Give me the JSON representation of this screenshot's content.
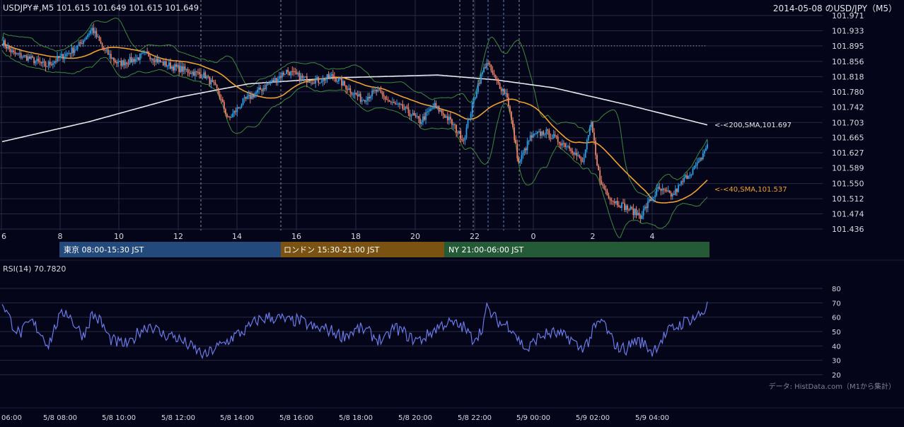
{
  "header": {
    "symbol_info": "USDJPY#,M5 101.615 101.649 101.615 101.649",
    "date_title": "2014-05-08 のUSD/JPY（M5）"
  },
  "colors": {
    "background": "#050519",
    "grid": "#262a44",
    "up_candle": "#2aa0e8",
    "down_candle": "#e8826a",
    "sma40": "#f0a030",
    "sma200": "#e8e8ee",
    "bollinger": "#3a8a3a",
    "rsi": "#6a7ae8",
    "tokyo": "#234a7a",
    "london": "#7a5212",
    "ny": "#245a36"
  },
  "chart_data": [
    {
      "type": "candlestick",
      "y_ticks": [
        "101.971",
        "101.933",
        "101.895",
        "101.856",
        "101.818",
        "101.780",
        "101.742",
        "101.703",
        "101.665",
        "101.627",
        "101.589",
        "101.550",
        "101.512",
        "101.474",
        "101.436"
      ],
      "ylim": [
        101.436,
        101.971
      ],
      "x_hour_ticks": [
        "6",
        "8",
        "10",
        "12",
        "14",
        "16",
        "18",
        "20",
        "22",
        "0",
        "2",
        "4"
      ],
      "indicators": {
        "sma200": {
          "label": "<-<200,SMA,101.697",
          "last": 101.697
        },
        "sma40": {
          "label": "<-<40,SMA,101.537",
          "last": 101.537
        },
        "bollinger": "bands"
      },
      "horizontal_level": 101.895,
      "series_anchor_closes": [
        [
          0,
          101.905
        ],
        [
          8,
          101.875
        ],
        [
          18,
          101.865
        ],
        [
          30,
          101.845
        ],
        [
          42,
          101.87
        ],
        [
          52,
          101.892
        ],
        [
          62,
          101.938
        ],
        [
          70,
          101.885
        ],
        [
          80,
          101.85
        ],
        [
          90,
          101.86
        ],
        [
          100,
          101.875
        ],
        [
          110,
          101.852
        ],
        [
          120,
          101.84
        ],
        [
          130,
          101.83
        ],
        [
          140,
          101.82
        ],
        [
          148,
          101.785
        ],
        [
          156,
          101.71
        ],
        [
          166,
          101.755
        ],
        [
          176,
          101.78
        ],
        [
          186,
          101.805
        ],
        [
          196,
          101.832
        ],
        [
          208,
          101.812
        ],
        [
          218,
          101.808
        ],
        [
          228,
          101.82
        ],
        [
          238,
          101.79
        ],
        [
          248,
          101.76
        ],
        [
          258,
          101.782
        ],
        [
          268,
          101.752
        ],
        [
          278,
          101.735
        ],
        [
          288,
          101.705
        ],
        [
          298,
          101.745
        ],
        [
          308,
          101.71
        ],
        [
          318,
          101.66
        ],
        [
          328,
          101.8
        ],
        [
          334,
          101.855
        ],
        [
          340,
          101.81
        ],
        [
          348,
          101.77
        ],
        [
          356,
          101.6
        ],
        [
          364,
          101.665
        ],
        [
          374,
          101.68
        ],
        [
          382,
          101.66
        ],
        [
          392,
          101.64
        ],
        [
          400,
          101.6
        ],
        [
          406,
          101.7
        ],
        [
          412,
          101.555
        ],
        [
          420,
          101.51
        ],
        [
          430,
          101.49
        ],
        [
          440,
          101.47
        ],
        [
          446,
          101.505
        ],
        [
          452,
          101.535
        ],
        [
          462,
          101.52
        ],
        [
          472,
          101.57
        ],
        [
          480,
          101.6
        ],
        [
          486,
          101.649
        ]
      ]
    },
    {
      "type": "line",
      "name": "RSI(14)",
      "label": "RSI(14) 70.7820",
      "last": 70.782,
      "ylim": [
        20,
        80
      ],
      "y_ticks": [
        "80",
        "70",
        "60",
        "50",
        "40",
        "30",
        "20"
      ],
      "anchor_values": [
        [
          0,
          71
        ],
        [
          6,
          57
        ],
        [
          12,
          48
        ],
        [
          20,
          57
        ],
        [
          26,
          50
        ],
        [
          32,
          41
        ],
        [
          38,
          57
        ],
        [
          44,
          65
        ],
        [
          50,
          55
        ],
        [
          56,
          47
        ],
        [
          62,
          62
        ],
        [
          68,
          57
        ],
        [
          74,
          45
        ],
        [
          80,
          42
        ],
        [
          88,
          41
        ],
        [
          94,
          50
        ],
        [
          102,
          55
        ],
        [
          110,
          48
        ],
        [
          118,
          47
        ],
        [
          126,
          42
        ],
        [
          134,
          37
        ],
        [
          140,
          33
        ],
        [
          146,
          38
        ],
        [
          152,
          41
        ],
        [
          160,
          47
        ],
        [
          168,
          51
        ],
        [
          176,
          58
        ],
        [
          184,
          60
        ],
        [
          192,
          59
        ],
        [
          198,
          57
        ],
        [
          204,
          58
        ],
        [
          210,
          55
        ],
        [
          216,
          52
        ],
        [
          222,
          52
        ],
        [
          228,
          50
        ],
        [
          234,
          47
        ],
        [
          240,
          49
        ],
        [
          246,
          52
        ],
        [
          252,
          50
        ],
        [
          258,
          45
        ],
        [
          264,
          44
        ],
        [
          270,
          53
        ],
        [
          276,
          50
        ],
        [
          282,
          45
        ],
        [
          288,
          44
        ],
        [
          294,
          48
        ],
        [
          300,
          53
        ],
        [
          306,
          56
        ],
        [
          312,
          55
        ],
        [
          318,
          53
        ],
        [
          324,
          45
        ],
        [
          330,
          50
        ],
        [
          334,
          66
        ],
        [
          338,
          61
        ],
        [
          344,
          55
        ],
        [
          348,
          55
        ],
        [
          352,
          52
        ],
        [
          356,
          44
        ],
        [
          362,
          37
        ],
        [
          368,
          45
        ],
        [
          374,
          48
        ],
        [
          380,
          49
        ],
        [
          386,
          47
        ],
        [
          392,
          45
        ],
        [
          398,
          38
        ],
        [
          404,
          43
        ],
        [
          408,
          52
        ],
        [
          414,
          58
        ],
        [
          418,
          48
        ],
        [
          424,
          39
        ],
        [
          430,
          38
        ],
        [
          436,
          44
        ],
        [
          442,
          42
        ],
        [
          448,
          36
        ],
        [
          454,
          44
        ],
        [
          460,
          51
        ],
        [
          466,
          54
        ],
        [
          472,
          58
        ],
        [
          478,
          60
        ],
        [
          484,
          64
        ],
        [
          486,
          71
        ]
      ]
    }
  ],
  "sessions": [
    {
      "label": "東京 08:00-15:30 JST"
    },
    {
      "label": "ロンドン 15:30-21:00 JST"
    },
    {
      "label": "NY 21:00-06:00 JST"
    }
  ],
  "time_axis_labels": [
    "06:00",
    "5/8 08:00",
    "5/8 10:00",
    "5/8 12:00",
    "5/8 14:00",
    "5/8 16:00",
    "5/8 18:00",
    "5/8 20:00",
    "5/8 22:00",
    "5/9 00:00",
    "5/9 02:00",
    "5/9 04:00"
  ],
  "source_note": "データ: HistData.com（M1から集計）"
}
